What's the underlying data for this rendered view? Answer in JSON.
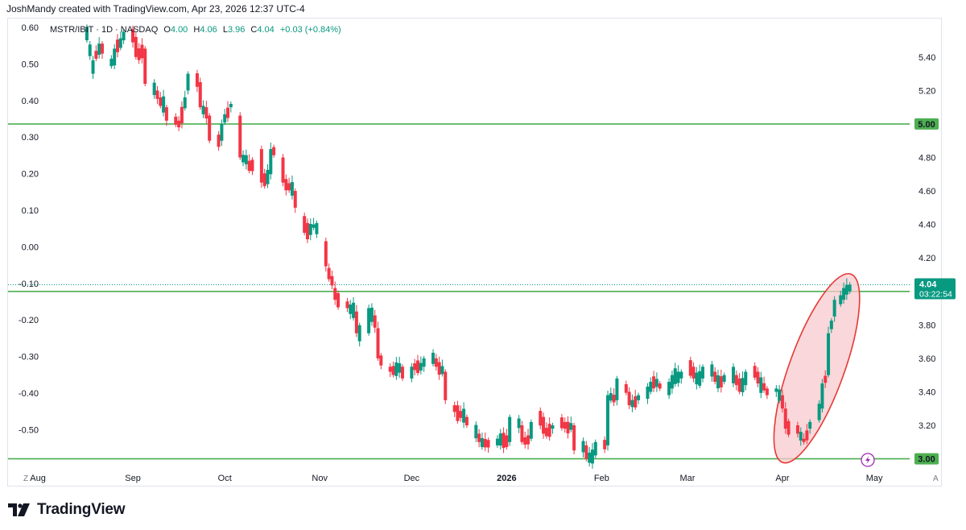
{
  "header": {
    "credit": "JoshMandy created with TradingView.com, Apr 23, 2026 12:37 UTC-4"
  },
  "legend": {
    "symbol": "MSTR/IBIT · 1D · NASDAQ",
    "o_label": "O",
    "o_value": "4.00",
    "h_label": "H",
    "h_value": "4.06",
    "l_label": "L",
    "l_value": "3.96",
    "c_label": "C",
    "c_value": "4.04",
    "change": "+0.03 (+0.84%)"
  },
  "brand": {
    "name": "TradingView"
  },
  "corner": {
    "left": "Z",
    "right": "A"
  },
  "colors": {
    "up": "#089981",
    "down": "#f23645",
    "level_line": "#4caf50",
    "label_bg": "#4caf50",
    "price_bg": "#089981",
    "ellipse_stroke": "#e53935",
    "ellipse_fill": "#f8c9ce"
  },
  "chart_data": {
    "type": "candlestick",
    "title": "MSTR/IBIT · 1D · NASDAQ",
    "x_axis": {
      "tick_labels": [
        "Aug",
        "Sep",
        "Oct",
        "Nov",
        "Dec",
        "2026",
        "Feb",
        "Mar",
        "Apr",
        "May"
      ],
      "tick_dates": [
        "2025-08-01",
        "2025-09-01",
        "2025-10-01",
        "2025-11-01",
        "2025-12-01",
        "2026-01-01",
        "2026-02-01",
        "2026-03-01",
        "2026-04-01",
        "2026-05-01"
      ],
      "range": [
        "2025-07-27",
        "2026-05-12"
      ]
    },
    "right_axis": {
      "ylim": [
        2.95,
        5.63
      ],
      "ticks": [
        3.2,
        3.4,
        3.6,
        3.8,
        4.0,
        4.2,
        4.4,
        4.6,
        4.8,
        5.0,
        5.2,
        5.4
      ],
      "tick_labels": [
        "3.20",
        "3.40",
        "3.60",
        "3.80",
        "",
        "4.20",
        "4.40",
        "4.60",
        "4.80",
        "",
        "5.20",
        "5.40"
      ]
    },
    "left_axis": {
      "ticks": [
        0.6,
        0.5,
        0.4,
        0.3,
        0.2,
        0.1,
        0.0,
        -0.1,
        -0.2,
        -0.3,
        -0.4,
        -0.5
      ],
      "tick_labels": [
        "0.60",
        "0.50",
        "0.40",
        "0.30",
        "0.20",
        "0.10",
        "0.00",
        "-0.10",
        "-0.20",
        "-0.30",
        "-0.40",
        "-0.50"
      ]
    },
    "horizontal_lines": [
      {
        "price": 5.0,
        "label": "5.00"
      },
      {
        "price": 4.0,
        "label": "4.00"
      },
      {
        "price": 3.0,
        "label": "3.00"
      }
    ],
    "last_price": {
      "value": 4.04,
      "label": "4.04",
      "countdown": "03:22:54"
    },
    "annotation": {
      "shape": "ellipse",
      "around": "April rally"
    },
    "anchors": [
      [
        "2025-08-17",
        5.5,
        5.58
      ],
      [
        "2025-08-19",
        5.3,
        5.38
      ],
      [
        "2025-08-22",
        5.48,
        5.42
      ],
      [
        "2025-08-26",
        5.35,
        5.45
      ],
      [
        "2025-08-29",
        5.5,
        5.55
      ],
      [
        "2025-09-02",
        5.52,
        5.4
      ],
      [
        "2025-09-05",
        5.45,
        5.24
      ],
      [
        "2025-09-09",
        5.2,
        5.15
      ],
      [
        "2025-09-12",
        5.1,
        5.02
      ],
      [
        "2025-09-16",
        5.02,
        4.98
      ],
      [
        "2025-09-19",
        5.2,
        5.3
      ],
      [
        "2025-09-23",
        5.25,
        5.1
      ],
      [
        "2025-09-26",
        5.05,
        4.9
      ],
      [
        "2025-09-30",
        4.9,
        5.0
      ],
      [
        "2025-10-03",
        5.1,
        5.12
      ],
      [
        "2025-10-06",
        5.05,
        4.8
      ],
      [
        "2025-10-09",
        4.78,
        4.72
      ],
      [
        "2025-10-13",
        4.85,
        4.65
      ],
      [
        "2025-10-16",
        4.7,
        4.85
      ],
      [
        "2025-10-20",
        4.8,
        4.65
      ],
      [
        "2025-10-24",
        4.6,
        4.5
      ],
      [
        "2025-10-27",
        4.45,
        4.35
      ],
      [
        "2025-10-30",
        4.38,
        4.4
      ],
      [
        "2025-11-03",
        4.3,
        4.15
      ],
      [
        "2025-11-06",
        4.02,
        3.95
      ],
      [
        "2025-11-10",
        3.94,
        3.9
      ],
      [
        "2025-11-13",
        3.88,
        3.75
      ],
      [
        "2025-11-17",
        3.75,
        3.9
      ],
      [
        "2025-11-20",
        3.78,
        3.6
      ],
      [
        "2025-11-24",
        3.55,
        3.52
      ],
      [
        "2025-11-28",
        3.55,
        3.48
      ],
      [
        "2025-12-01",
        3.48,
        3.55
      ],
      [
        "2025-12-05",
        3.55,
        3.6
      ],
      [
        "2025-12-09",
        3.6,
        3.55
      ],
      [
        "2025-12-12",
        3.52,
        3.35
      ],
      [
        "2025-12-15",
        3.32,
        3.28
      ],
      [
        "2025-12-19",
        3.25,
        3.2
      ],
      [
        "2025-12-23",
        3.15,
        3.1
      ],
      [
        "2025-12-29",
        3.08,
        3.12
      ],
      [
        "2026-01-02",
        3.1,
        3.25
      ],
      [
        "2026-01-06",
        3.2,
        3.1
      ],
      [
        "2026-01-09",
        3.12,
        3.22
      ],
      [
        "2026-01-13",
        3.25,
        3.15
      ],
      [
        "2026-01-16",
        3.18,
        3.2
      ],
      [
        "2026-01-20",
        3.22,
        3.18
      ],
      [
        "2026-01-23",
        3.2,
        3.05
      ],
      [
        "2026-01-27",
        3.08,
        3.0
      ],
      [
        "2026-01-30",
        3.02,
        3.1
      ],
      [
        "2026-02-03",
        3.08,
        3.38
      ],
      [
        "2026-02-06",
        3.35,
        3.48
      ],
      [
        "2026-02-10",
        3.4,
        3.32
      ],
      [
        "2026-02-13",
        3.35,
        3.38
      ],
      [
        "2026-02-17",
        3.4,
        3.46
      ],
      [
        "2026-02-20",
        3.45,
        3.42
      ],
      [
        "2026-02-24",
        3.42,
        3.5
      ],
      [
        "2026-02-27",
        3.48,
        3.52
      ],
      [
        "2026-03-03",
        3.55,
        3.48
      ],
      [
        "2026-03-06",
        3.48,
        3.55
      ],
      [
        "2026-03-10",
        3.52,
        3.46
      ],
      [
        "2026-03-13",
        3.46,
        3.5
      ],
      [
        "2026-03-17",
        3.5,
        3.44
      ],
      [
        "2026-03-20",
        3.44,
        3.52
      ],
      [
        "2026-03-24",
        3.52,
        3.45
      ],
      [
        "2026-03-27",
        3.42,
        3.38
      ],
      [
        "2026-03-30",
        3.4,
        3.42
      ],
      [
        "2026-04-02",
        3.3,
        3.18
      ],
      [
        "2026-04-06",
        3.2,
        3.15
      ],
      [
        "2026-04-08",
        3.12,
        3.1
      ],
      [
        "2026-04-10",
        3.18,
        3.22
      ],
      [
        "2026-04-14",
        3.3,
        3.45
      ],
      [
        "2026-04-16",
        3.5,
        3.75
      ],
      [
        "2026-04-18",
        3.85,
        3.95
      ],
      [
        "2026-04-21",
        3.95,
        4.02
      ],
      [
        "2026-04-23",
        4.0,
        4.04
      ]
    ]
  }
}
